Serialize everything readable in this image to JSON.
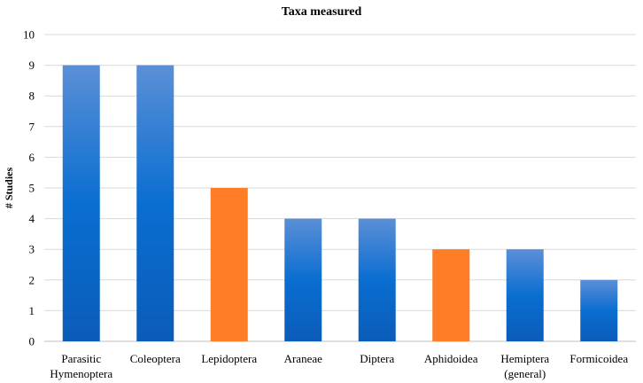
{
  "chart_data": {
    "type": "bar",
    "title": "Taxa measured",
    "xlabel": "",
    "ylabel": "# Studies",
    "ylim": [
      0,
      10
    ],
    "yticks": [
      0,
      1,
      2,
      3,
      4,
      5,
      6,
      7,
      8,
      9,
      10
    ],
    "grid": true,
    "categories": [
      [
        "Parasitic",
        "Hymenoptera"
      ],
      [
        "Coleoptera"
      ],
      [
        "Lepidoptera"
      ],
      [
        "Araneae"
      ],
      [
        "Diptera"
      ],
      [
        "Aphidoidea"
      ],
      [
        "Hemiptera",
        "(general)"
      ],
      [
        "Formicoidea"
      ]
    ],
    "values": [
      9,
      9,
      5,
      4,
      4,
      3,
      3,
      2
    ],
    "bar_colors": [
      "blue",
      "blue",
      "orange",
      "blue",
      "blue",
      "orange",
      "blue",
      "blue"
    ]
  },
  "colors": {
    "blue_top": "#5b8fd6",
    "blue_mid": "#0a6ed1",
    "blue_bottom": "#0b5cb8",
    "orange": "#fd7e27",
    "grid": "#d9d9d9",
    "axis": "#bfbfbf"
  }
}
